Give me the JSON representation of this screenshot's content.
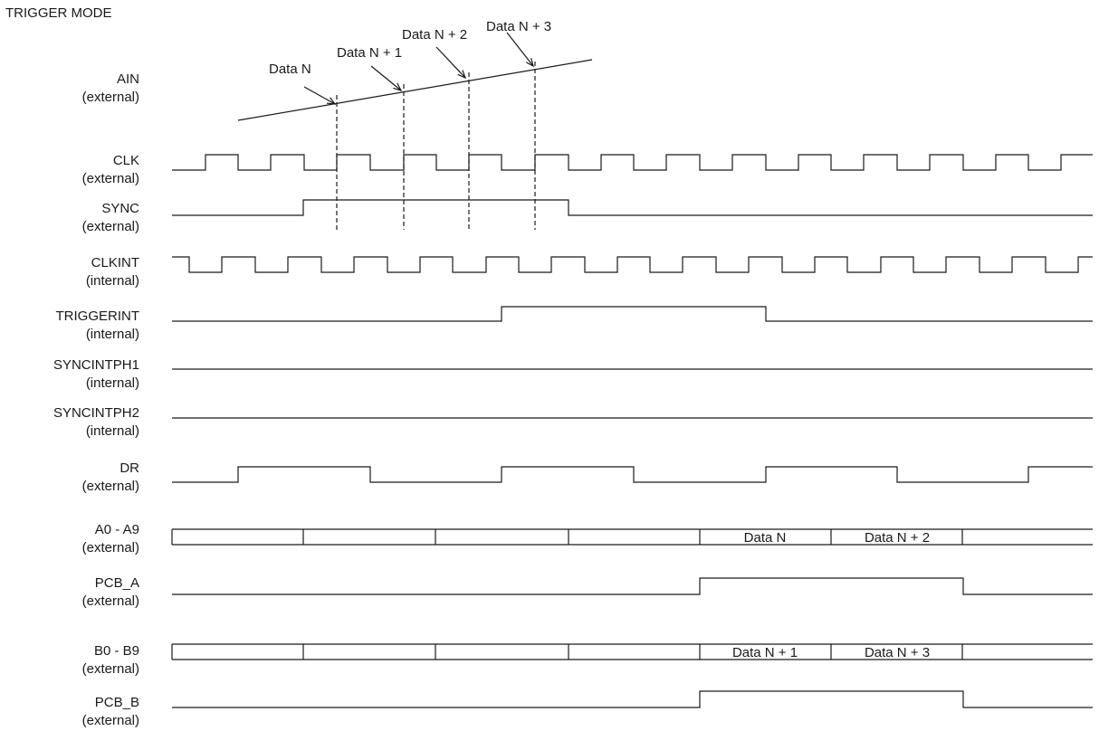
{
  "title": "TRIGGER MODE",
  "signals": [
    {
      "name": "AIN",
      "sub": "(external)"
    },
    {
      "name": "CLK",
      "sub": "(external)"
    },
    {
      "name": "SYNC",
      "sub": "(external)"
    },
    {
      "name": "CLKINT",
      "sub": "(internal)"
    },
    {
      "name": "TRIGGERINT",
      "sub": "(internal)"
    },
    {
      "name": "SYNCINTPH1",
      "sub": "(internal)"
    },
    {
      "name": "SYNCINTPH2",
      "sub": "(internal)"
    },
    {
      "name": "DR",
      "sub": "(external)"
    },
    {
      "name": "A0 - A9",
      "sub": "(external)"
    },
    {
      "name": "PCB_A",
      "sub": "(external)"
    },
    {
      "name": "B0 - B9",
      "sub": "(external)"
    },
    {
      "name": "PCB_B",
      "sub": "(external)"
    }
  ],
  "sample_labels": [
    "Data N",
    "Data N + 1",
    "Data N + 2",
    "Data N + 3"
  ],
  "bus_a_values": [
    "",
    "",
    "",
    "",
    "Data N",
    "Data N + 2",
    ""
  ],
  "bus_b_values": [
    "",
    "",
    "",
    "",
    "Data N + 1",
    "Data N + 3",
    ""
  ]
}
